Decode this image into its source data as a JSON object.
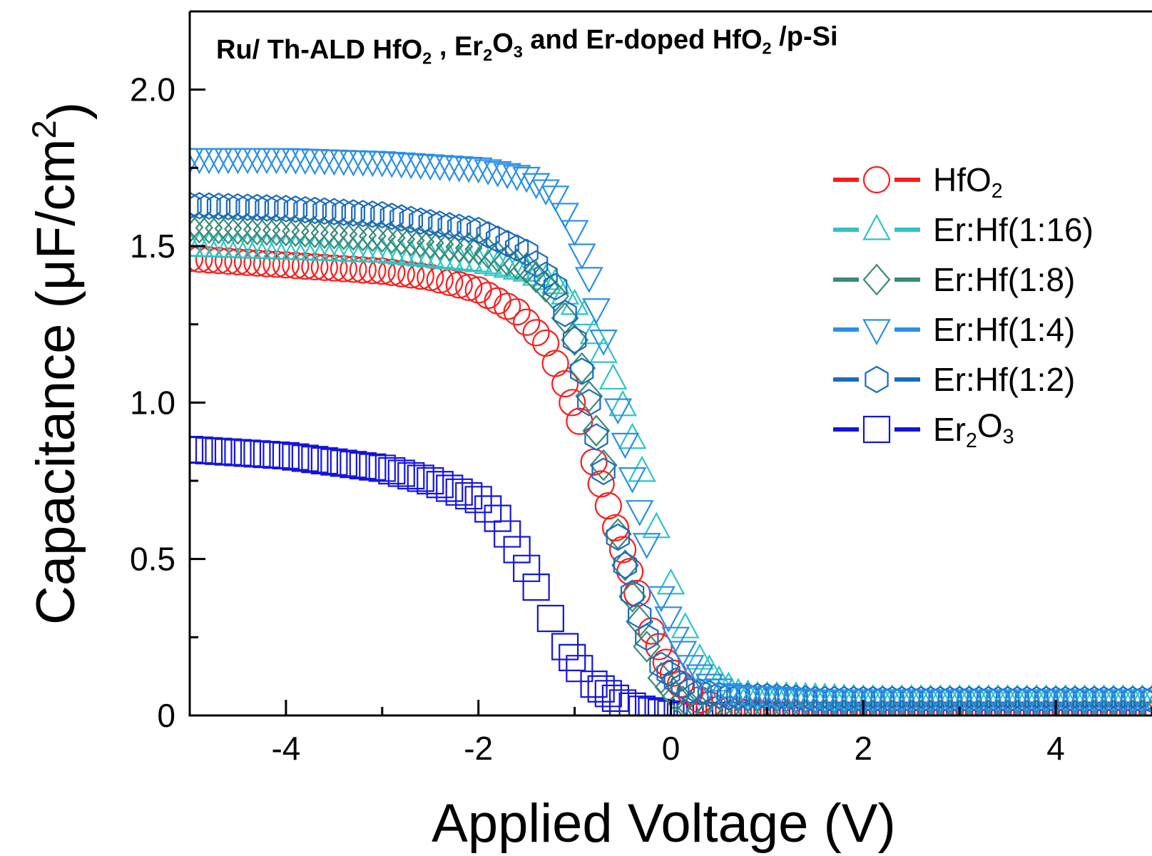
{
  "chart_data": {
    "type": "scatter",
    "title_parts": [
      {
        "t": "Ru/ Th-ALD HfO"
      },
      {
        "t": "2",
        "sub": true
      },
      {
        "t": " , Er"
      },
      {
        "t": "2",
        "sub": true
      },
      {
        "t": "O"
      },
      {
        "t": "3",
        "sub": true
      },
      {
        "t": " and Er-doped HfO"
      },
      {
        "t": "2",
        "sub": true
      },
      {
        "t": " /p-Si"
      }
    ],
    "xlabel": "Applied Voltage (V)",
    "ylabel_parts": [
      {
        "t": "Capacitance ("
      },
      {
        "t": "μ"
      },
      {
        "t": "F/cm"
      },
      {
        "t": "2",
        "sup": true
      },
      {
        "t": ")"
      }
    ],
    "xlim": [
      -5,
      5
    ],
    "ylim": [
      0,
      2.25
    ],
    "xticks": [
      -4,
      -2,
      0,
      2,
      4
    ],
    "xtick_labels": [
      "-4",
      "-2",
      "0",
      "2",
      "4"
    ],
    "yticks": [
      0,
      0.5,
      1.0,
      1.5,
      2.0
    ],
    "ytick_labels": [
      "0",
      "0.5",
      "1.0",
      "1.5",
      "2.0"
    ],
    "grid": false,
    "legend_position": "right",
    "series": [
      {
        "name_parts": [
          {
            "t": "HfO"
          },
          {
            "t": "2",
            "sub": true
          }
        ],
        "marker": "circle",
        "color": "#ff1a1a",
        "x": [
          -5.0,
          -4.0,
          -3.0,
          -2.5,
          -2.0,
          -1.6,
          -1.3,
          -1.1,
          -0.95,
          -0.8,
          -0.65,
          -0.5,
          -0.35,
          -0.2,
          -0.05,
          0.1,
          0.3,
          0.5,
          0.8,
          1.2,
          2.0,
          3.0,
          4.0,
          5.0
        ],
        "y": [
          1.46,
          1.44,
          1.42,
          1.4,
          1.36,
          1.29,
          1.19,
          1.06,
          0.94,
          0.81,
          0.67,
          0.53,
          0.39,
          0.27,
          0.17,
          0.1,
          0.05,
          0.02,
          0.01,
          0.0,
          0.0,
          0.0,
          0.0,
          0.0
        ]
      },
      {
        "name_parts": [
          {
            "t": "Er:Hf(1:16)"
          }
        ],
        "marker": "triangle-up",
        "color": "#2ec4c4",
        "x": [
          -5.0,
          -4.0,
          -3.0,
          -2.0,
          -1.5,
          -1.2,
          -0.9,
          -0.7,
          -0.5,
          -0.3,
          -0.15,
          0.0,
          0.15,
          0.3,
          0.5,
          0.7,
          0.9,
          1.2,
          2.0,
          3.0,
          4.0,
          5.0
        ],
        "y": [
          1.5,
          1.49,
          1.48,
          1.45,
          1.42,
          1.38,
          1.28,
          1.16,
          0.99,
          0.78,
          0.6,
          0.42,
          0.28,
          0.18,
          0.11,
          0.07,
          0.06,
          0.06,
          0.05,
          0.05,
          0.05,
          0.05
        ]
      },
      {
        "name_parts": [
          {
            "t": "Er:Hf(1:8)"
          }
        ],
        "marker": "diamond",
        "color": "#3a8a78",
        "x": [
          -5.0,
          -4.0,
          -3.0,
          -2.0,
          -1.5,
          -1.2,
          -1.0,
          -0.85,
          -0.7,
          -0.55,
          -0.4,
          -0.25,
          -0.1,
          0.05,
          0.2,
          0.4,
          0.6,
          1.0,
          2.0,
          3.0,
          4.0,
          5.0
        ],
        "y": [
          1.56,
          1.55,
          1.53,
          1.49,
          1.43,
          1.34,
          1.2,
          1.02,
          0.8,
          0.58,
          0.38,
          0.22,
          0.12,
          0.06,
          0.03,
          0.01,
          0.0,
          0.0,
          0.0,
          0.0,
          0.0,
          0.0
        ]
      },
      {
        "name_parts": [
          {
            "t": "Er:Hf(1:4)"
          }
        ],
        "marker": "triangle-down",
        "color": "#2b8ee8",
        "x": [
          -5.0,
          -4.0,
          -3.0,
          -2.0,
          -1.5,
          -1.2,
          -1.0,
          -0.85,
          -0.7,
          -0.55,
          -0.4,
          -0.25,
          -0.1,
          0.05,
          0.2,
          0.4,
          0.6,
          0.8,
          1.0,
          1.5,
          2.0,
          3.0,
          4.0,
          5.0
        ],
        "y": [
          1.78,
          1.78,
          1.77,
          1.75,
          1.72,
          1.66,
          1.55,
          1.4,
          1.2,
          0.98,
          0.76,
          0.55,
          0.38,
          0.25,
          0.16,
          0.1,
          0.07,
          0.06,
          0.06,
          0.05,
          0.05,
          0.05,
          0.05,
          0.05
        ]
      },
      {
        "name_parts": [
          {
            "t": "Er:Hf(1:2)"
          }
        ],
        "marker": "hexagon",
        "color": "#1a6bbf",
        "x": [
          -5.0,
          -4.0,
          -3.0,
          -2.0,
          -1.5,
          -1.2,
          -1.0,
          -0.85,
          -0.7,
          -0.55,
          -0.4,
          -0.25,
          -0.1,
          0.05,
          0.2,
          0.4,
          0.6,
          0.8,
          1.0,
          1.5,
          2.0,
          3.0,
          4.0,
          5.0
        ],
        "y": [
          1.63,
          1.62,
          1.6,
          1.55,
          1.48,
          1.37,
          1.2,
          1.0,
          0.78,
          0.57,
          0.39,
          0.25,
          0.16,
          0.11,
          0.08,
          0.07,
          0.06,
          0.06,
          0.06,
          0.05,
          0.05,
          0.05,
          0.05,
          0.05
        ]
      },
      {
        "name_parts": [
          {
            "t": "Er"
          },
          {
            "t": "2",
            "sub": true
          },
          {
            "t": "O"
          },
          {
            "t": "3",
            "sub": true
          }
        ],
        "marker": "square",
        "color": "#1414e0",
        "x": [
          -5.0,
          -4.0,
          -3.0,
          -2.5,
          -2.0,
          -1.8,
          -1.6,
          -1.4,
          -1.25,
          -1.1,
          -0.95,
          -0.8,
          -0.65,
          -0.5,
          -0.3,
          -0.1,
          0.1,
          0.4,
          0.8,
          1.2,
          2.0,
          3.0,
          4.0,
          5.0
        ],
        "y": [
          0.85,
          0.83,
          0.79,
          0.75,
          0.69,
          0.63,
          0.53,
          0.41,
          0.31,
          0.22,
          0.15,
          0.1,
          0.07,
          0.04,
          0.02,
          0.01,
          0.0,
          0.0,
          0.0,
          0.0,
          0.0,
          0.0,
          0.0,
          0.0
        ]
      }
    ]
  }
}
